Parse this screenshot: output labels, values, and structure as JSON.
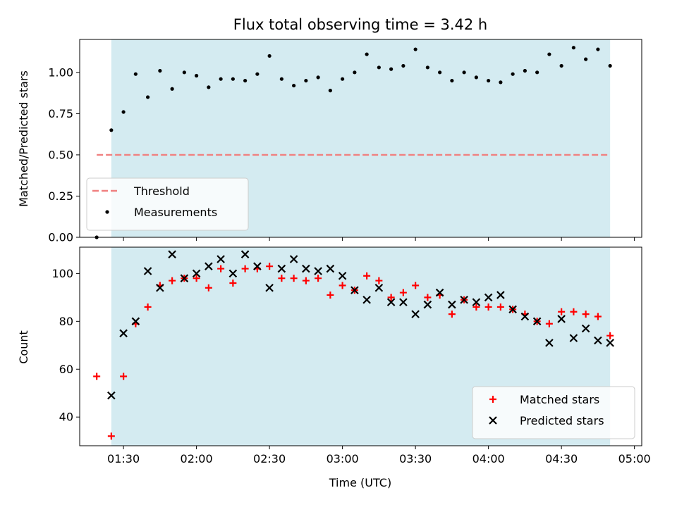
{
  "colors": {
    "observing_span": "#d4ebf1",
    "threshold": "#f08080",
    "measurements": "#000000",
    "matched": "#ff0000",
    "predicted": "#000000"
  },
  "chart_data": [
    {
      "type": "scatter",
      "title": "Flux total observing time = 3.42 h",
      "ylabel": "Matched/Predicted stars",
      "xlim": [
        "01:12",
        "05:03"
      ],
      "ylim": [
        0,
        1.2
      ],
      "x_ticks": [
        "01:30",
        "02:00",
        "02:30",
        "03:00",
        "03:30",
        "04:00",
        "04:30",
        "05:00"
      ],
      "y_ticks": [
        "0.00",
        "0.25",
        "0.50",
        "0.75",
        "1.00"
      ],
      "observing_span": [
        "01:25",
        "04:50"
      ],
      "threshold": {
        "name": "Threshold",
        "value": 0.5,
        "x_range": [
          "01:19",
          "04:50"
        ]
      },
      "legend_placement": "lower left",
      "series": [
        {
          "name": "Measurements",
          "x": [
            "01:19",
            "01:25",
            "01:30",
            "01:35",
            "01:40",
            "01:45",
            "01:50",
            "01:55",
            "02:00",
            "02:05",
            "02:10",
            "02:15",
            "02:20",
            "02:25",
            "02:30",
            "02:35",
            "02:40",
            "02:45",
            "02:50",
            "02:55",
            "03:00",
            "03:05",
            "03:10",
            "03:15",
            "03:20",
            "03:25",
            "03:30",
            "03:35",
            "03:40",
            "03:45",
            "03:50",
            "03:55",
            "04:00",
            "04:05",
            "04:10",
            "04:15",
            "04:20",
            "04:25",
            "04:30",
            "04:35",
            "04:40",
            "04:45",
            "04:50"
          ],
          "y": [
            0.0,
            0.65,
            0.76,
            0.99,
            0.85,
            1.01,
            0.9,
            1.0,
            0.98,
            0.91,
            0.96,
            0.96,
            0.95,
            0.99,
            1.1,
            0.96,
            0.92,
            0.95,
            0.97,
            0.89,
            0.96,
            1.0,
            1.11,
            1.03,
            1.02,
            1.04,
            1.14,
            1.03,
            1.0,
            0.95,
            1.0,
            0.97,
            0.95,
            0.94,
            0.99,
            1.01,
            1.0,
            1.11,
            1.04,
            1.15,
            1.08,
            1.14,
            1.04
          ]
        }
      ]
    },
    {
      "type": "scatter",
      "xlabel": "Time (UTC)",
      "ylabel": "Count",
      "xlim": [
        "01:12",
        "05:03"
      ],
      "ylim": [
        28,
        111
      ],
      "x_ticks": [
        "01:30",
        "02:00",
        "02:30",
        "03:00",
        "03:30",
        "04:00",
        "04:30",
        "05:00"
      ],
      "y_ticks": [
        "40",
        "60",
        "80",
        "100"
      ],
      "observing_span": [
        "01:25",
        "04:50"
      ],
      "legend_placement": "lower right",
      "series": [
        {
          "name": "Matched stars",
          "marker": "+",
          "x": [
            "01:19",
            "01:25",
            "01:30",
            "01:35",
            "01:40",
            "01:45",
            "01:50",
            "01:55",
            "02:00",
            "02:05",
            "02:10",
            "02:15",
            "02:20",
            "02:25",
            "02:30",
            "02:35",
            "02:40",
            "02:45",
            "02:50",
            "02:55",
            "03:00",
            "03:05",
            "03:10",
            "03:15",
            "03:20",
            "03:25",
            "03:30",
            "03:35",
            "03:40",
            "03:45",
            "03:50",
            "03:55",
            "04:00",
            "04:05",
            "04:10",
            "04:15",
            "04:20",
            "04:25",
            "04:30",
            "04:35",
            "04:40",
            "04:45",
            "04:50"
          ],
          "y": [
            57,
            32,
            57,
            79,
            86,
            95,
            97,
            98,
            98,
            94,
            102,
            96,
            102,
            102,
            103,
            98,
            98,
            97,
            98,
            91,
            95,
            93,
            99,
            97,
            90,
            92,
            95,
            90,
            91,
            83,
            89,
            86,
            86,
            86,
            85,
            83,
            80,
            79,
            84,
            84,
            83,
            82,
            74
          ]
        },
        {
          "name": "Predicted stars",
          "marker": "x",
          "x": [
            "01:25",
            "01:30",
            "01:35",
            "01:40",
            "01:45",
            "01:50",
            "01:55",
            "02:00",
            "02:05",
            "02:10",
            "02:15",
            "02:20",
            "02:25",
            "02:30",
            "02:35",
            "02:40",
            "02:45",
            "02:50",
            "02:55",
            "03:00",
            "03:05",
            "03:10",
            "03:15",
            "03:20",
            "03:25",
            "03:30",
            "03:35",
            "03:40",
            "03:45",
            "03:50",
            "03:55",
            "04:00",
            "04:05",
            "04:10",
            "04:15",
            "04:20",
            "04:25",
            "04:30",
            "04:35",
            "04:40",
            "04:45",
            "04:50"
          ],
          "y": [
            49,
            75,
            80,
            101,
            94,
            108,
            98,
            100,
            103,
            106,
            100,
            108,
            103,
            94,
            102,
            106,
            102,
            101,
            102,
            99,
            93,
            89,
            94,
            88,
            88,
            83,
            87,
            92,
            87,
            89,
            88,
            90,
            91,
            85,
            82,
            80,
            71,
            81,
            73,
            77,
            72,
            71
          ]
        }
      ]
    }
  ]
}
